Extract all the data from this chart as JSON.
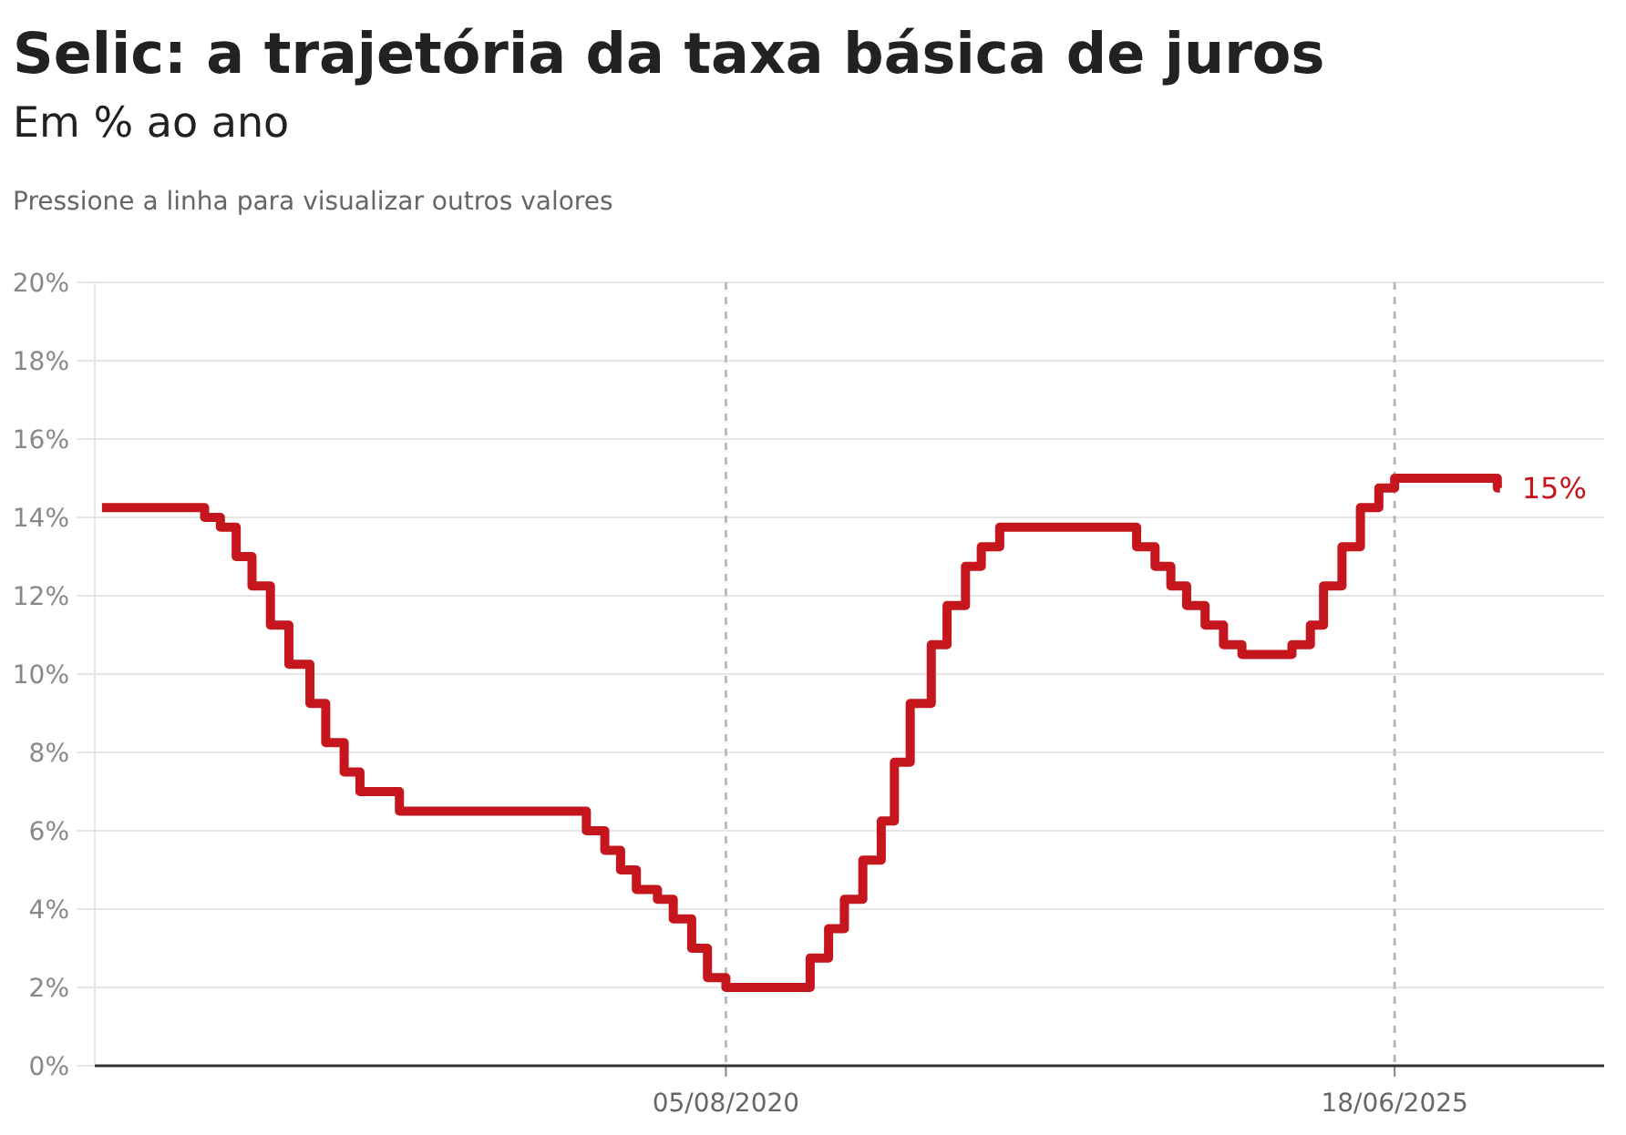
{
  "chart_data": {
    "type": "step",
    "title": "Selic: a trajetória da taxa básica de juros",
    "subtitle": "Em % ao ano",
    "annotations": [
      "Pressione a linha para visualizar outros valores",
      "15%"
    ],
    "x": [
      "2016-01-20",
      "2016-10-19",
      "2016-11-30",
      "2017-01-11",
      "2017-02-22",
      "2017-04-12",
      "2017-05-31",
      "2017-07-26",
      "2017-09-06",
      "2017-10-25",
      "2017-12-06",
      "2018-03-21",
      "2019-07-31",
      "2019-09-18",
      "2019-10-30",
      "2019-12-11",
      "2020-02-05",
      "2020-03-18",
      "2020-05-06",
      "2020-06-17",
      "2020-08-05",
      "2021-03-17",
      "2021-05-05",
      "2021-06-16",
      "2021-08-04",
      "2021-09-22",
      "2021-10-27",
      "2021-12-08",
      "2022-02-02",
      "2022-03-16",
      "2022-05-04",
      "2022-06-15",
      "2022-08-03",
      "2023-08-02",
      "2023-09-20",
      "2023-11-01",
      "2023-12-13",
      "2024-01-31",
      "2024-03-20",
      "2024-05-08",
      "2024-09-18",
      "2024-11-06",
      "2024-12-11",
      "2025-01-29",
      "2025-03-19",
      "2025-05-07",
      "2025-06-18",
      "2026-03-18",
      "2026-03-25"
    ],
    "series": [
      {
        "color": "#c4161c",
        "values": [
          14.25,
          14,
          13.75,
          13,
          12.25,
          11.25,
          10.25,
          9.25,
          8.25,
          7.5,
          7,
          6.5,
          6,
          5.5,
          5,
          4.5,
          4.25,
          3.75,
          3,
          2.25,
          2,
          2.75,
          3.5,
          4.25,
          5.25,
          6.25,
          7.75,
          9.25,
          10.75,
          11.75,
          12.75,
          13.25,
          13.75,
          13.25,
          12.75,
          12.25,
          11.75,
          11.25,
          10.75,
          10.5,
          10.75,
          11.25,
          12.25,
          13.25,
          14.25,
          14.75,
          15,
          14.75,
          14.75
        ]
      }
    ],
    "xlim": [
      "2016-01-01",
      "2026-12-27"
    ],
    "xticks": [
      {
        "value": "2020-08-05",
        "label": "05/08/2020"
      },
      {
        "value": "2025-06-18",
        "label": "18/06/2025"
      }
    ],
    "ylim": [
      0,
      20
    ],
    "yticks": [
      {
        "value": 0,
        "label": "0%"
      },
      {
        "value": 2,
        "label": "2%"
      },
      {
        "value": 4,
        "label": "4%"
      },
      {
        "value": 6,
        "label": "6%"
      },
      {
        "value": 8,
        "label": "8%"
      },
      {
        "value": 10,
        "label": "10%"
      },
      {
        "value": 12,
        "label": "12%"
      },
      {
        "value": 14,
        "label": "14%"
      },
      {
        "value": 16,
        "label": "16%"
      },
      {
        "value": 18,
        "label": "18%"
      },
      {
        "value": 20,
        "label": "20%"
      }
    ],
    "ref_lines": [
      {
        "axis": "x",
        "value": "2020-08-05",
        "color": "#bbbbbb",
        "line_style": "dashed"
      },
      {
        "axis": "x",
        "value": "2025-06-18",
        "color": "#bbbbbb",
        "line_style": "dashed"
      }
    ],
    "grid": "y",
    "marker": "none",
    "line_style": "solid"
  }
}
